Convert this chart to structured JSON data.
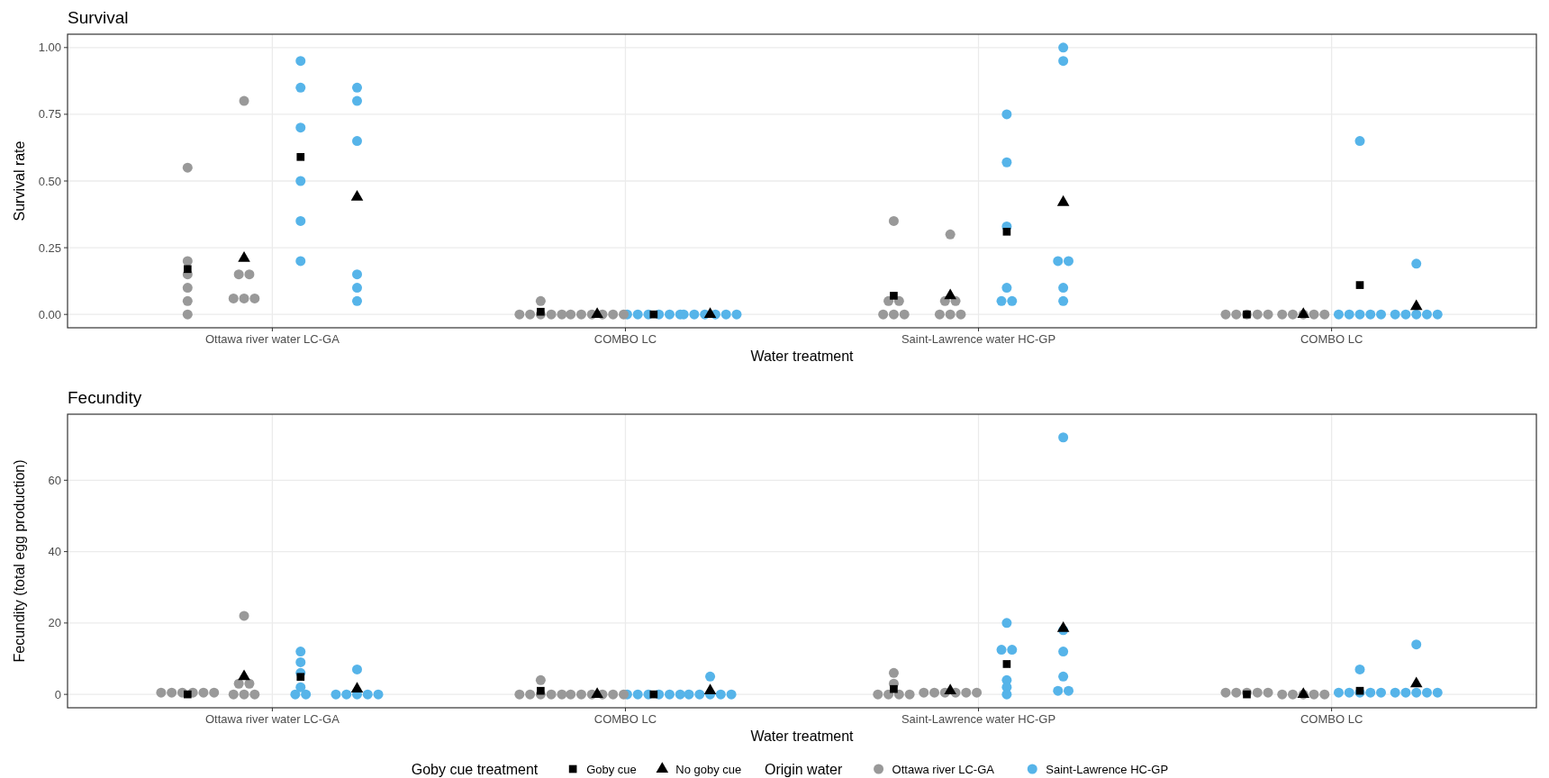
{
  "chart_data": [
    {
      "type": "scatter",
      "title": "Survival",
      "xlabel": "Water treatment",
      "ylabel": "Survival rate",
      "categories": [
        "Ottawa river water LC-GA",
        "COMBO LC",
        "Saint-Lawrence water HC-GP",
        "COMBO LC"
      ],
      "ylim": [
        -0.05,
        1.05
      ],
      "yticks": [
        {
          "value": 0,
          "label": "0.00"
        },
        {
          "value": 0.25,
          "label": "0.25"
        },
        {
          "value": 0.5,
          "label": "0.50"
        },
        {
          "value": 0.75,
          "label": "0.75"
        },
        {
          "value": 1,
          "label": "1.00"
        }
      ],
      "grid": true,
      "series": [
        {
          "color": "#999999",
          "marker": "circle",
          "values": [
            0.55,
            0.05,
            0.35,
            0
          ]
        },
        {
          "color": "#999999",
          "marker": "circle",
          "values": [
            0.8,
            0,
            0.3,
            0
          ]
        },
        {
          "color": "#56b4e9",
          "marker": "circle",
          "values": [
            0.95,
            0,
            0.75,
            0.65
          ]
        },
        {
          "color": "#56b4e9",
          "marker": "circle",
          "values": [
            0.85,
            0,
            1,
            0.19
          ]
        },
        {
          "color": "#999999",
          "marker": "circle",
          "values": [
            0.2,
            0,
            0.05,
            0
          ]
        },
        {
          "color": "#999999",
          "marker": "circle",
          "values": [
            0.15,
            0,
            0.05,
            0
          ]
        },
        {
          "color": "#56b4e9",
          "marker": "circle",
          "values": [
            0.85,
            0,
            0.57,
            0
          ]
        },
        {
          "color": "#56b4e9",
          "marker": "circle",
          "values": [
            0.8,
            0,
            0.95,
            0
          ]
        },
        {
          "color": "#999999",
          "marker": "circle",
          "values": [
            0.15,
            0,
            0.05,
            0
          ]
        },
        {
          "color": "#999999",
          "marker": "circle",
          "values": [
            0.15,
            0,
            0.05,
            0
          ]
        },
        {
          "color": "#56b4e9",
          "marker": "circle",
          "values": [
            0.7,
            0,
            0.33,
            0
          ]
        },
        {
          "color": "#56b4e9",
          "marker": "circle",
          "values": [
            0.65,
            0,
            0.2,
            0
          ]
        },
        {
          "color": "#999999",
          "marker": "circle",
          "values": [
            0.1,
            0,
            0,
            0
          ]
        },
        {
          "color": "#999999",
          "marker": "circle",
          "values": [
            0.06,
            0,
            0,
            0
          ]
        },
        {
          "color": "#56b4e9",
          "marker": "circle",
          "values": [
            0.5,
            0,
            0.1,
            0
          ]
        },
        {
          "color": "#56b4e9",
          "marker": "circle",
          "values": [
            0.15,
            0,
            0.2,
            0
          ]
        },
        {
          "color": "#999999",
          "marker": "circle",
          "values": [
            0.05,
            0,
            0,
            0
          ]
        },
        {
          "color": "#999999",
          "marker": "circle",
          "values": [
            0.06,
            0,
            0,
            0
          ]
        },
        {
          "color": "#56b4e9",
          "marker": "circle",
          "values": [
            0.35,
            0,
            0.05,
            0
          ]
        },
        {
          "color": "#56b4e9",
          "marker": "circle",
          "values": [
            0.1,
            0,
            0.1,
            0
          ]
        },
        {
          "color": "#999999",
          "marker": "circle",
          "values": [
            0,
            0,
            0,
            null
          ]
        },
        {
          "color": "#999999",
          "marker": "circle",
          "values": [
            0.06,
            0,
            0,
            null
          ]
        },
        {
          "color": "#56b4e9",
          "marker": "circle",
          "values": [
            0.2,
            0,
            0.05,
            0
          ]
        },
        {
          "color": "#56b4e9",
          "marker": "circle",
          "values": [
            0.05,
            0,
            0.05,
            0
          ]
        },
        {
          "color": "#000000",
          "marker": "square",
          "values": [
            0.17,
            0.01,
            0.07,
            0
          ]
        },
        {
          "color": "#000000",
          "marker": "triangle",
          "values": [
            0.21,
            0,
            0.07,
            0
          ]
        },
        {
          "color": "#000000",
          "marker": "square",
          "values": [
            0.59,
            0,
            0.31,
            0.11
          ]
        },
        {
          "color": "#000000",
          "marker": "triangle",
          "values": [
            0.44,
            0,
            0.42,
            0.03
          ]
        }
      ]
    },
    {
      "type": "scatter",
      "title": "Fecundity",
      "xlabel": "Water treatment",
      "ylabel": "Fecundity (total egg production)",
      "categories": [
        "Ottawa river water LC-GA",
        "COMBO LC",
        "Saint-Lawrence water HC-GP",
        "COMBO LC"
      ],
      "ylim": [
        -3.75,
        78.5
      ],
      "yticks": [
        0,
        20,
        40,
        60
      ],
      "grid": true,
      "legend": "bottom",
      "legend_title": "Goby cue treatment",
      "annotations": [
        "Origin water"
      ],
      "series": [
        {
          "name": "Ottawa river LC-GA",
          "color": "#999999",
          "marker": "circle",
          "values": [
            0.5,
            4,
            6,
            0.5
          ]
        },
        {
          "color": "#999999",
          "marker": "circle",
          "values": [
            22,
            0,
            0.5,
            0
          ]
        },
        {
          "name": "Saint-Lawrence HC-GP",
          "color": "#56b4e9",
          "marker": "circle",
          "values": [
            12,
            0,
            20,
            7
          ]
        },
        {
          "color": "#56b4e9",
          "marker": "circle",
          "values": [
            7,
            5,
            72,
            14
          ]
        },
        {
          "color": "#999999",
          "marker": "circle",
          "values": [
            0.5,
            0,
            3,
            0.5
          ]
        },
        {
          "color": "#999999",
          "marker": "circle",
          "values": [
            3,
            0,
            0.5,
            0
          ]
        },
        {
          "color": "#56b4e9",
          "marker": "circle",
          "values": [
            9,
            0,
            12.5,
            0.5
          ]
        },
        {
          "color": "#56b4e9",
          "marker": "circle",
          "values": [
            0,
            0,
            18,
            0.5
          ]
        },
        {
          "color": "#999999",
          "marker": "circle",
          "values": [
            0.5,
            0,
            0,
            0.5
          ]
        },
        {
          "color": "#999999",
          "marker": "circle",
          "values": [
            3,
            0,
            0.5,
            0
          ]
        },
        {
          "color": "#56b4e9",
          "marker": "circle",
          "values": [
            6,
            0,
            12.5,
            0.5
          ]
        },
        {
          "color": "#56b4e9",
          "marker": "circle",
          "values": [
            0,
            0,
            12,
            0.5
          ]
        },
        {
          "color": "#999999",
          "marker": "circle",
          "values": [
            0.5,
            0,
            0,
            0.5
          ]
        },
        {
          "color": "#999999",
          "marker": "circle",
          "values": [
            0,
            0,
            0.5,
            0
          ]
        },
        {
          "color": "#56b4e9",
          "marker": "circle",
          "values": [
            2,
            0,
            4,
            0.5
          ]
        },
        {
          "color": "#56b4e9",
          "marker": "circle",
          "values": [
            0,
            0,
            5,
            0.5
          ]
        },
        {
          "color": "#999999",
          "marker": "circle",
          "values": [
            0.5,
            0,
            0,
            0.5
          ]
        },
        {
          "color": "#999999",
          "marker": "circle",
          "values": [
            0,
            0,
            0.5,
            0
          ]
        },
        {
          "color": "#56b4e9",
          "marker": "circle",
          "values": [
            0,
            0,
            2,
            0.5
          ]
        },
        {
          "color": "#56b4e9",
          "marker": "circle",
          "values": [
            0,
            0,
            1,
            0.5
          ]
        },
        {
          "color": "#999999",
          "marker": "circle",
          "values": [
            0.5,
            0,
            0,
            null
          ]
        },
        {
          "color": "#999999",
          "marker": "circle",
          "values": [
            0,
            0,
            0.5,
            null
          ]
        },
        {
          "color": "#56b4e9",
          "marker": "circle",
          "values": [
            0,
            0,
            0,
            0.5
          ]
        },
        {
          "color": "#56b4e9",
          "marker": "circle",
          "values": [
            0,
            0,
            1,
            0.5
          ]
        },
        {
          "name": "Goby cue",
          "color": "#000000",
          "marker": "square",
          "values": [
            0,
            1,
            1.5,
            0
          ]
        },
        {
          "name": "No goby cue",
          "color": "#000000",
          "marker": "triangle",
          "values": [
            5,
            0,
            1,
            0
          ]
        },
        {
          "color": "#000000",
          "marker": "square",
          "values": [
            4.9,
            0,
            8.5,
            1
          ]
        },
        {
          "color": "#000000",
          "marker": "triangle",
          "values": [
            1.5,
            1,
            18.5,
            3
          ]
        }
      ]
    }
  ]
}
